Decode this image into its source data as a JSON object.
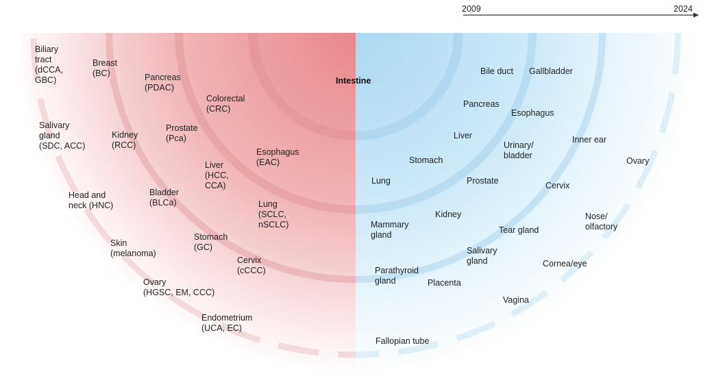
{
  "timeline": {
    "start": "2009",
    "end": "2024"
  },
  "center_label": "Intestine",
  "colors": {
    "left_accent": "#e8878c",
    "right_accent": "#a9d8f3",
    "arc_left": "#d9878c",
    "arc_right": "#8fc6e6"
  },
  "left_labels": [
    "Biliary\ntract\n(dCCA,\nGBC)",
    "Breast\n(BC)",
    "Pancreas\n(PDAC)",
    "Colorectal\n(CRC)",
    "Salivary\ngland\n(SDC, ACC)",
    "Kidney\n(RCC)",
    "Prostate\n(Pca)",
    "Esophagus\n(EAC)",
    "Liver\n(HCC,\nCCA)",
    "Head and\nneck (HNC)",
    "Bladder\n(BLCa)",
    "Lung\n(SCLC,\nnSCLC)",
    "Skin\n(melanoma)",
    "Stomach\n(GC)",
    "Cervix\n(cCCC)",
    "Ovary\n(HGSC, EM, CCC)",
    "Endometrium\n(UCA, EC)"
  ],
  "right_labels": [
    "Bile duct",
    "Gallbladder",
    "Pancreas",
    "Esophagus",
    "Liver",
    "Inner ear",
    "Urinary/\nbladder",
    "Stomach",
    "Ovary",
    "Lung",
    "Prostate",
    "Cervix",
    "Kidney",
    "Nose/\nolfactory",
    "Mammary\ngland",
    "Tear gland",
    "Salivary\ngland",
    "Cornea/eye",
    "Parathyroid\ngland",
    "Placenta",
    "Vagina",
    "Fallopian tube"
  ]
}
